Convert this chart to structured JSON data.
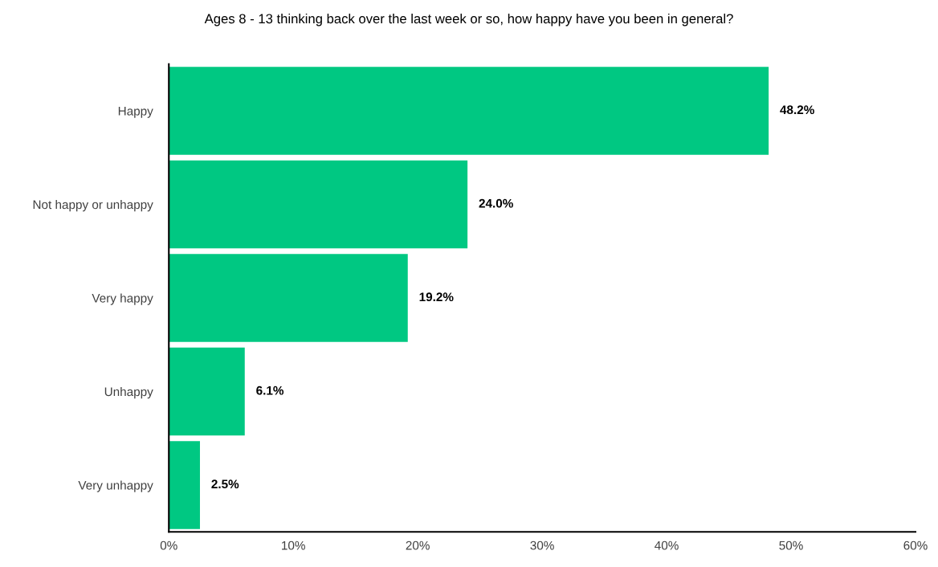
{
  "chart_data": {
    "type": "bar",
    "orientation": "horizontal",
    "title": "Ages 8 - 13 thinking back over the last week or so, how happy have you been in general?",
    "categories": [
      "Happy",
      "Not happy or unhappy",
      "Very happy",
      "Unhappy",
      "Very unhappy"
    ],
    "values": [
      48.2,
      24.0,
      19.2,
      6.1,
      2.5
    ],
    "value_labels": [
      "48.2%",
      "24.0%",
      "19.2%",
      "6.1%",
      "2.5%"
    ],
    "color": "#00c882",
    "xlim": [
      0,
      60
    ],
    "xticks": [
      {
        "value": 0,
        "label": "0%"
      },
      {
        "value": 10,
        "label": "10%"
      },
      {
        "value": 20,
        "label": "20%"
      },
      {
        "value": 30,
        "label": "30%"
      },
      {
        "value": 40,
        "label": "40%"
      },
      {
        "value": 50,
        "label": "50%"
      },
      {
        "value": 60,
        "label": "60%"
      }
    ],
    "grid": false,
    "legend": false
  }
}
